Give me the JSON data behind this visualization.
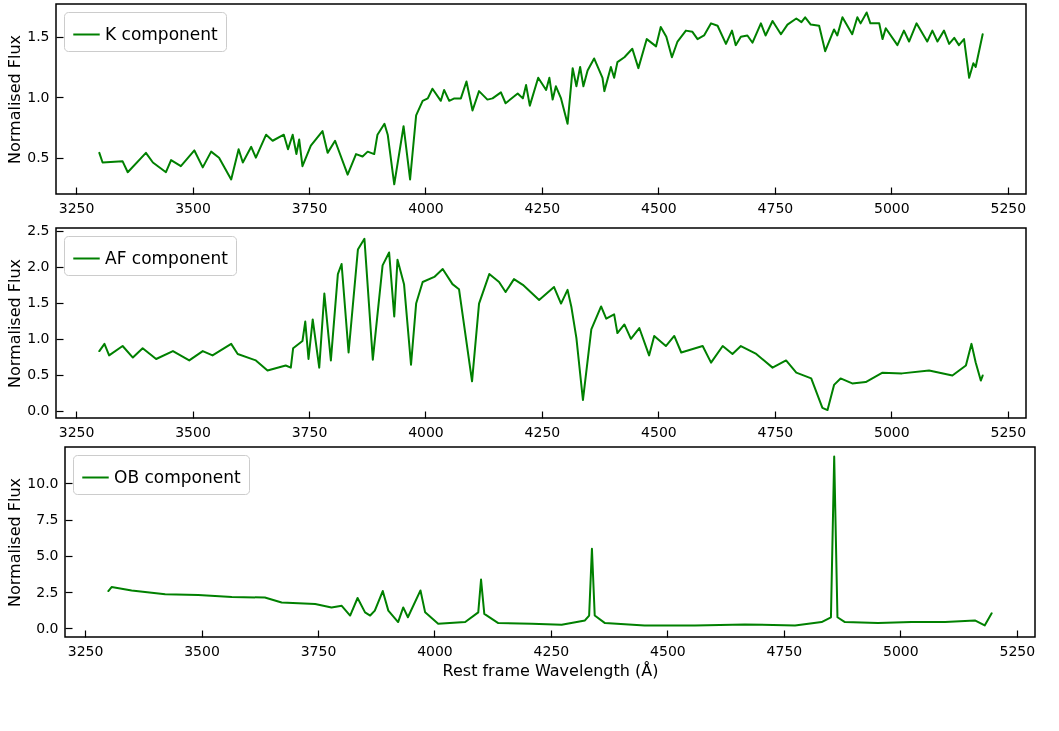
{
  "chart_data": [
    {
      "type": "line",
      "ylabel": "Normalised Flux",
      "legend": "top left",
      "xlim": [
        3207,
        5289
      ],
      "xticks": [
        3250,
        3500,
        3750,
        4000,
        4250,
        4500,
        4750,
        5000,
        5250
      ],
      "ylim": [
        0.2,
        1.77
      ],
      "yticks": [
        0.5,
        {
          "value": 1,
          "label": "1.0"
        },
        1.5
      ],
      "x": [
        3300,
        3307,
        3350,
        3361,
        3400,
        3415,
        3443,
        3454,
        3475,
        3504,
        3522,
        3540,
        3557,
        3583,
        3599,
        3608,
        3626,
        3636,
        3658,
        3672,
        3696,
        3705,
        3715,
        3723,
        3729,
        3736,
        3754,
        3779,
        3790,
        3806,
        3833,
        3851,
        3865,
        3876,
        3890,
        3897,
        3912,
        3919,
        3933,
        3953,
        3967,
        3980,
        3994,
        4005,
        4015,
        4033,
        4040,
        4051,
        4062,
        4076,
        4088,
        4101,
        4115,
        4133,
        4144,
        4162,
        4172,
        4198,
        4209,
        4216,
        4224,
        4242,
        4259,
        4266,
        4273,
        4280,
        4291,
        4305,
        4316,
        4324,
        4332,
        4339,
        4348,
        4362,
        4380,
        4384,
        4398,
        4405,
        4412,
        4427,
        4444,
        4457,
        4475,
        4495,
        4505,
        4517,
        4529,
        4541,
        4559,
        4573,
        4584,
        4598,
        4613,
        4627,
        4645,
        4658,
        4666,
        4677,
        4691,
        4702,
        4720,
        4730,
        4745,
        4763,
        4777,
        4796,
        4807,
        4815,
        4827,
        4845,
        4858,
        4877,
        4884,
        4895,
        4916,
        4927,
        4934,
        4947,
        4955,
        4974,
        4981,
        4988,
        5013,
        5027,
        5038,
        5054,
        5077,
        5088,
        5099,
        5113,
        5124,
        5135,
        5145,
        5156,
        5167,
        5176,
        5181,
        5196
      ],
      "series": [
        {
          "name": "K component",
          "color": "#008000",
          "values": [
            0.54,
            0.46,
            0.47,
            0.38,
            0.54,
            0.46,
            0.38,
            0.48,
            0.43,
            0.56,
            0.42,
            0.55,
            0.5,
            0.32,
            0.57,
            0.46,
            0.59,
            0.5,
            0.69,
            0.64,
            0.69,
            0.57,
            0.69,
            0.53,
            0.65,
            0.43,
            0.6,
            0.72,
            0.54,
            0.64,
            0.36,
            0.53,
            0.51,
            0.55,
            0.53,
            0.69,
            0.78,
            0.69,
            0.28,
            0.76,
            0.32,
            0.85,
            0.97,
            0.99,
            1.07,
            0.97,
            1.06,
            0.97,
            0.99,
            0.99,
            1.13,
            0.89,
            1.05,
            0.98,
            0.99,
            1.04,
            0.95,
            1.03,
            0.99,
            1.1,
            0.93,
            1.16,
            1.06,
            1.16,
            0.98,
            1.09,
            0.99,
            0.78,
            1.24,
            1.09,
            1.25,
            1.09,
            1.22,
            1.32,
            1.16,
            1.05,
            1.25,
            1.16,
            1.29,
            1.33,
            1.4,
            1.24,
            1.48,
            1.42,
            1.58,
            1.5,
            1.33,
            1.46,
            1.55,
            1.54,
            1.48,
            1.51,
            1.61,
            1.59,
            1.44,
            1.55,
            1.43,
            1.5,
            1.51,
            1.45,
            1.61,
            1.51,
            1.63,
            1.52,
            1.6,
            1.65,
            1.62,
            1.66,
            1.6,
            1.59,
            1.38,
            1.56,
            1.51,
            1.66,
            1.52,
            1.66,
            1.61,
            1.7,
            1.61,
            1.61,
            1.48,
            1.57,
            1.43,
            1.55,
            1.46,
            1.61,
            1.46,
            1.55,
            1.46,
            1.55,
            1.44,
            1.49,
            1.43,
            1.48,
            1.16,
            1.28,
            1.25,
            1.52
          ]
        }
      ]
    },
    {
      "type": "line",
      "ylabel": "Normalised Flux",
      "legend": "top left",
      "xlim": [
        3207,
        5289
      ],
      "xticks": [
        3250,
        3500,
        3750,
        4000,
        4250,
        4500,
        4750,
        5000,
        5250
      ],
      "ylim": [
        -0.1,
        2.54
      ],
      "yticks": [
        {
          "value": 0,
          "label": "0.0"
        },
        0.5,
        {
          "value": 1,
          "label": "1.0"
        },
        1.5,
        {
          "value": 2,
          "label": "2.0"
        },
        2.5
      ],
      "x": [
        3300,
        3311,
        3321,
        3350,
        3372,
        3393,
        3422,
        3458,
        3493,
        3522,
        3543,
        3583,
        3597,
        3636,
        3661,
        3700,
        3711,
        3716,
        3736,
        3742,
        3749,
        3758,
        3772,
        3783,
        3797,
        3812,
        3820,
        3835,
        3855,
        3869,
        3887,
        3908,
        3922,
        3933,
        3940,
        3954,
        3969,
        3980,
        3994,
        4019,
        4037,
        4058,
        4072,
        4100,
        4115,
        4137,
        4158,
        4172,
        4190,
        4209,
        4244,
        4276,
        4291,
        4305,
        4313,
        4324,
        4338,
        4356,
        4377,
        4388,
        4405,
        4412,
        4427,
        4441,
        4459,
        4480,
        4491,
        4516,
        4534,
        4549,
        4595,
        4613,
        4638,
        4659,
        4677,
        4710,
        4745,
        4774,
        4796,
        4828,
        4852,
        4863,
        4877,
        4891,
        4916,
        4945,
        4981,
        5023,
        5081,
        5131,
        5160,
        5172,
        5181,
        5192,
        5196
      ],
      "series": [
        {
          "name": "AF component",
          "color": "#008000",
          "values": [
            0.83,
            0.93,
            0.77,
            0.9,
            0.74,
            0.87,
            0.72,
            0.83,
            0.7,
            0.83,
            0.77,
            0.93,
            0.79,
            0.7,
            0.56,
            0.63,
            0.6,
            0.87,
            0.97,
            1.24,
            0.72,
            1.27,
            0.6,
            1.63,
            0.7,
            1.9,
            2.04,
            0.81,
            2.24,
            2.39,
            0.71,
            2.02,
            2.2,
            1.31,
            2.1,
            1.76,
            0.64,
            1.49,
            1.79,
            1.86,
            1.97,
            1.76,
            1.69,
            0.41,
            1.49,
            1.9,
            1.79,
            1.65,
            1.83,
            1.75,
            1.54,
            1.72,
            1.49,
            1.68,
            1.45,
            1.01,
            0.15,
            1.13,
            1.45,
            1.28,
            1.34,
            1.08,
            1.2,
            1.0,
            1.15,
            0.77,
            1.04,
            0.9,
            1.04,
            0.81,
            0.9,
            0.67,
            0.9,
            0.79,
            0.9,
            0.79,
            0.6,
            0.7,
            0.53,
            0.45,
            0.04,
            0.01,
            0.36,
            0.45,
            0.38,
            0.4,
            0.53,
            0.52,
            0.56,
            0.49,
            0.63,
            0.93,
            0.67,
            0.42,
            0.49
          ]
        }
      ]
    },
    {
      "type": "line",
      "ylabel": "Normalised Flux",
      "xlabel": "Rest frame Wavelength (Å)",
      "legend": "top left",
      "xlim": [
        3207,
        5289
      ],
      "xticks": [
        3250,
        3500,
        3750,
        4000,
        4250,
        4500,
        4750,
        5000,
        5250
      ],
      "ylim": [
        -0.6,
        12.5
      ],
      "yticks": [
        {
          "value": 0,
          "label": "0.0"
        },
        2.5,
        {
          "value": 5,
          "label": "5.0"
        },
        7.5,
        {
          "value": 10,
          "label": "10.0"
        }
      ],
      "x": [
        3300,
        3307,
        3350,
        3422,
        3493,
        3565,
        3636,
        3672,
        3744,
        3779,
        3801,
        3819,
        3835,
        3851,
        3862,
        3872,
        3889,
        3901,
        3922,
        3933,
        3943,
        3970,
        3980,
        4008,
        4066,
        4094,
        4100,
        4107,
        4137,
        4209,
        4273,
        4323,
        4332,
        4338,
        4344,
        4366,
        4451,
        4559,
        4666,
        4774,
        4831,
        4851,
        4858,
        4865,
        4881,
        4952,
        5024,
        5096,
        5160,
        5181,
        5196
      ],
      "series": [
        {
          "name": "OB component",
          "color": "#008000",
          "values": [
            2.57,
            2.84,
            2.61,
            2.34,
            2.3,
            2.16,
            2.12,
            1.78,
            1.67,
            1.44,
            1.55,
            0.88,
            2.09,
            1.1,
            0.88,
            1.22,
            2.57,
            1.22,
            0.43,
            1.44,
            0.76,
            2.61,
            1.1,
            0.32,
            0.43,
            1.1,
            3.36,
            0.99,
            0.36,
            0.32,
            0.25,
            0.54,
            0.88,
            5.49,
            0.88,
            0.36,
            0.2,
            0.2,
            0.27,
            0.2,
            0.43,
            0.76,
            11.85,
            0.76,
            0.43,
            0.36,
            0.43,
            0.43,
            0.54,
            0.2,
            1.03
          ]
        }
      ]
    }
  ]
}
